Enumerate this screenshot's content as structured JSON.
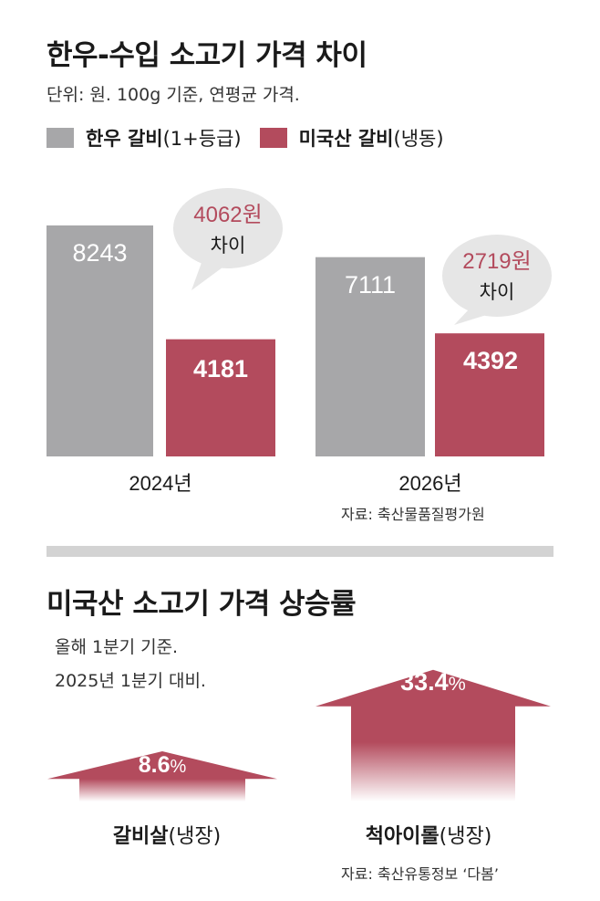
{
  "colors": {
    "gray": "#a7a7a9",
    "red": "#b34b5d",
    "bubble": "#e6e6e6",
    "divider": "#d3d3d3"
  },
  "section1": {
    "title": "한우-수입 소고기 가격 차이",
    "subtitle": "단위: 원. 100g 기준, 연평균 가격.",
    "legend": [
      {
        "main": "한우 갈비",
        "rest": "(1+등급)",
        "color": "#a7a7a9"
      },
      {
        "main": "미국산 갈비",
        "rest": "(냉동)",
        "color": "#b34b5d"
      }
    ],
    "source": "자료: 축산물품질평가원"
  },
  "chart_data": [
    {
      "type": "bar",
      "title": "한우-수입 소고기 가격 차이",
      "subtitle": "단위: 원. 100g 기준, 연평균 가격.",
      "categories": [
        "2024년",
        "2026년"
      ],
      "series": [
        {
          "name": "한우 갈비(1+등급)",
          "values": [
            8243,
            7111
          ],
          "color": "#a7a7a9"
        },
        {
          "name": "미국산 갈비(냉동)",
          "values": [
            4181,
            4392
          ],
          "color": "#b34b5d"
        }
      ],
      "value_labels": [
        [
          "8243",
          "7111"
        ],
        [
          "4181",
          "4392"
        ]
      ],
      "annotations": [
        {
          "amount": "4062원",
          "label": "차이"
        },
        {
          "amount": "2719원",
          "label": "차이"
        }
      ],
      "legend_position": "top",
      "grid": false
    },
    {
      "type": "bar",
      "title": "미국산 소고기 가격 상승률",
      "subtitle": [
        "올해 1분기 기준.",
        "2025년 1분기 대비."
      ],
      "categories": [
        "갈비살(냉장)",
        "척아이롤(냉장)"
      ],
      "values": [
        8.6,
        33.4
      ],
      "value_labels": [
        {
          "num": "8.6",
          "unit": "%"
        },
        {
          "num": "33.4",
          "unit": "%"
        }
      ],
      "label_parts": [
        {
          "main": "갈비살",
          "rest": "(냉장)"
        },
        {
          "main": "척아이롤",
          "rest": "(냉장)"
        }
      ],
      "source": "자료: 축산유통정보 ‘다봄’"
    }
  ],
  "section2": {
    "title": "미국산 소고기 가격 상승률",
    "subtitle_lines": [
      "올해 1분기 기준.",
      "2025년 1분기 대비."
    ],
    "source": "자료: 축산유통정보 ‘다봄’"
  }
}
